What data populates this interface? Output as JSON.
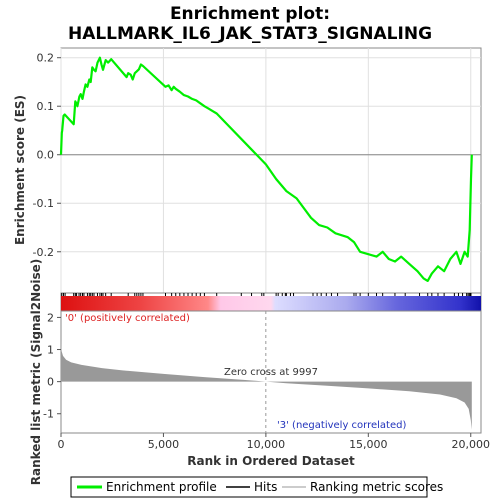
{
  "chart_data": {
    "type": "line",
    "title_line1": "Enrichment plot:",
    "title_line2": "HALLMARK_IL6_JAK_STAT3_SIGNALING",
    "top_panel": {
      "ylabel": "Enrichment score (ES)",
      "ylim": [
        -0.285,
        0.22
      ],
      "yticks": [
        -0.2,
        -0.1,
        0.0,
        0.1,
        0.2
      ],
      "ytick_labels": [
        "-0.2",
        "-0.1",
        "0.0",
        "0.1",
        "0.2"
      ],
      "series": [
        {
          "name": "Enrichment profile",
          "color": "#00ee00",
          "x": [
            0,
            40,
            60,
            120,
            180,
            620,
            700,
            760,
            800,
            900,
            960,
            1050,
            1120,
            1200,
            1290,
            1380,
            1450,
            1530,
            1610,
            1690,
            1780,
            1900,
            1980,
            2050,
            2180,
            2300,
            2450,
            3200,
            3280,
            3400,
            3500,
            3600,
            3700,
            3800,
            3900,
            4000,
            5100,
            5250,
            5400,
            5500,
            5600,
            5800,
            6000,
            6200,
            6400,
            6600,
            6800,
            7000,
            7200,
            7400,
            7600,
            10000,
            10500,
            11000,
            11500,
            12200,
            12600,
            13000,
            13400,
            14000,
            14300,
            14600,
            15000,
            15400,
            15700,
            16000,
            16300,
            16600,
            17000,
            17400,
            17700,
            17900,
            18100,
            18400,
            18700,
            19000,
            19300,
            19500,
            19700,
            19850,
            19950,
            20010,
            20050
          ],
          "y": [
            0.0,
            0.045,
            0.05,
            0.08,
            0.083,
            0.063,
            0.11,
            0.105,
            0.1,
            0.12,
            0.125,
            0.115,
            0.13,
            0.145,
            0.14,
            0.155,
            0.15,
            0.18,
            0.175,
            0.172,
            0.19,
            0.2,
            0.185,
            0.175,
            0.195,
            0.19,
            0.197,
            0.16,
            0.168,
            0.165,
            0.155,
            0.168,
            0.172,
            0.176,
            0.186,
            0.183,
            0.14,
            0.143,
            0.133,
            0.14,
            0.136,
            0.13,
            0.123,
            0.12,
            0.115,
            0.112,
            0.106,
            0.1,
            0.095,
            0.09,
            0.085,
            -0.02,
            -0.05,
            -0.075,
            -0.09,
            -0.13,
            -0.145,
            -0.15,
            -0.162,
            -0.17,
            -0.18,
            -0.2,
            -0.205,
            -0.21,
            -0.2,
            -0.215,
            -0.22,
            -0.21,
            -0.225,
            -0.24,
            -0.255,
            -0.26,
            -0.245,
            -0.23,
            -0.24,
            -0.215,
            -0.2,
            -0.225,
            -0.2,
            -0.21,
            -0.155,
            -0.05,
            0.0
          ]
        }
      ]
    },
    "hits_panel": {
      "name": "Hits",
      "hit_ranks": [
        40,
        120,
        200,
        620,
        700,
        760,
        880,
        960,
        1050,
        1120,
        1290,
        1380,
        1450,
        1530,
        1610,
        1780,
        1900,
        1980,
        2050,
        2180,
        2450,
        3280,
        3600,
        3700,
        3800,
        3900,
        4000,
        5100,
        5400,
        5600,
        5800,
        6000,
        6200,
        6400,
        6600,
        6800,
        7000,
        7600,
        8800,
        9300,
        9800,
        9900,
        10500,
        10600,
        10800,
        10950,
        11000,
        11200,
        11350,
        12300,
        12500,
        12700,
        12950,
        13200,
        13500,
        14300,
        14400,
        14600,
        15000,
        15400,
        15700,
        16300,
        16800,
        17500,
        17900,
        18100,
        18400,
        18700,
        19200,
        19400,
        19600,
        19800,
        19870,
        19930,
        19980,
        20010
      ],
      "colorbar_stops": [
        "#dd1111",
        "#ee4444",
        "#ff8888",
        "#ffc8e8",
        "#ccccff",
        "#8888ee",
        "#3333cc",
        "#1111aa"
      ]
    },
    "bottom_panel": {
      "ylabel": "Ranked list metric (Signal2Noise)",
      "ylim": [
        -1.6,
        2.2
      ],
      "yticks": [
        -1,
        0,
        1,
        2
      ],
      "ytick_labels": [
        "-1",
        "0",
        "1",
        "2"
      ],
      "metric_x": [
        0,
        30,
        100,
        250,
        500,
        1000,
        2000,
        3000,
        5000,
        7000,
        9000,
        9997,
        11000,
        13000,
        15000,
        17000,
        18500,
        19300,
        19700,
        19900,
        20000,
        20050
      ],
      "metric_y": [
        1.3,
        0.95,
        0.8,
        0.68,
        0.6,
        0.52,
        0.42,
        0.35,
        0.24,
        0.14,
        0.05,
        0.0,
        -0.05,
        -0.13,
        -0.21,
        -0.3,
        -0.4,
        -0.52,
        -0.65,
        -0.85,
        -1.2,
        -1.5
      ],
      "fill_color": "#999999",
      "pos_label": "'0' (positively correlated)",
      "neg_label": "'3' (negatively correlated)",
      "zero_cross_label": "Zero cross at 9997",
      "zero_cross": 9997
    },
    "xaxis": {
      "xlabel": "Rank in Ordered Dataset",
      "xlim": [
        0,
        20500
      ],
      "xticks": [
        0,
        5000,
        10000,
        15000,
        20000
      ],
      "xtick_labels": [
        "0",
        "5,000",
        "10,000",
        "15,000",
        "20,000"
      ]
    },
    "legend": {
      "placement": "bottom-center",
      "items": [
        {
          "label": "Enrichment profile",
          "color": "#00ee00",
          "style": "thick-line"
        },
        {
          "label": "Hits",
          "color": "#000000",
          "style": "line"
        },
        {
          "label": "Ranking metric scores",
          "color": "#bbbbbb",
          "style": "line"
        }
      ]
    }
  }
}
